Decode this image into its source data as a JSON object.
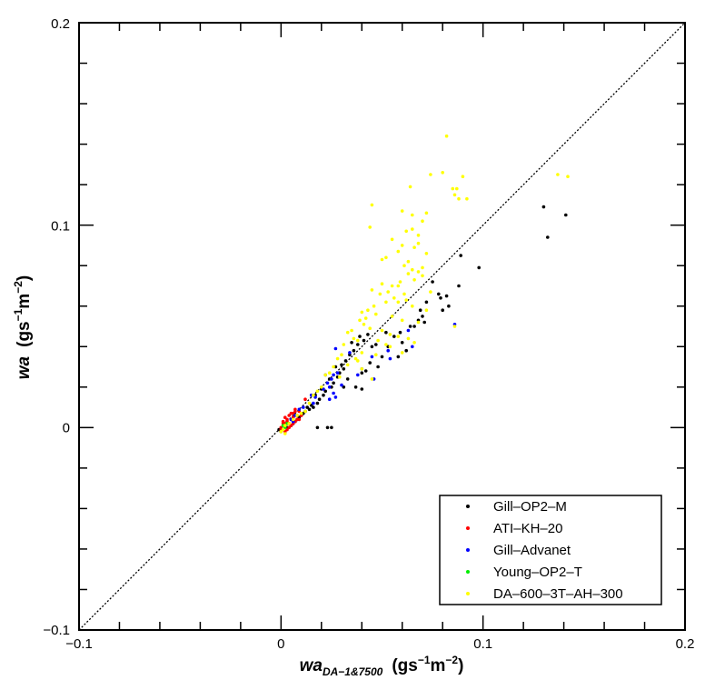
{
  "chart_data": {
    "type": "scatter",
    "xlim": [
      -0.1,
      0.2
    ],
    "ylim": [
      -0.1,
      0.2
    ],
    "x_ticks": [
      "−0.1",
      "0",
      "0.1",
      "0.2"
    ],
    "y_ticks": [
      "−0.1",
      "0",
      "0.1",
      "0.2"
    ],
    "xlabel": {
      "main": "wa",
      "sub": "DA−1&7500",
      "units_prefix": "(gs",
      "units_exp1": "−1",
      "units_mid": "m",
      "units_exp2": "−2",
      "units_suffix": ")"
    },
    "ylabel": {
      "main": "wa",
      "units_prefix": "(gs",
      "units_exp1": "−1",
      "units_mid": "m",
      "units_exp2": "−2",
      "units_suffix": ")"
    },
    "reference_line": "1:1 dotted",
    "legend_position": "bottom-right",
    "grid": false,
    "series": [
      {
        "name": "Gill–OP2–M",
        "color": "#000000",
        "points": [
          [
            0.141,
            0.105
          ],
          [
            0.13,
            0.109
          ],
          [
            0.132,
            0.094
          ],
          [
            0.098,
            0.079
          ],
          [
            0.089,
            0.085
          ],
          [
            0.088,
            0.07
          ],
          [
            0.082,
            0.065
          ],
          [
            0.079,
            0.064
          ],
          [
            0.083,
            0.06
          ],
          [
            0.08,
            0.058
          ],
          [
            0.075,
            0.072
          ],
          [
            0.078,
            0.066
          ],
          [
            0.069,
            0.058
          ],
          [
            0.07,
            0.055
          ],
          [
            0.068,
            0.053
          ],
          [
            0.072,
            0.062
          ],
          [
            0.071,
            0.052
          ],
          [
            0.064,
            0.05
          ],
          [
            0.066,
            0.05
          ],
          [
            0.059,
            0.047
          ],
          [
            0.056,
            0.045
          ],
          [
            0.052,
            0.047
          ],
          [
            0.06,
            0.042
          ],
          [
            0.047,
            0.041
          ],
          [
            0.045,
            0.04
          ],
          [
            0.043,
            0.046
          ],
          [
            0.041,
            0.043
          ],
          [
            0.039,
            0.045
          ],
          [
            0.038,
            0.041
          ],
          [
            0.036,
            0.038
          ],
          [
            0.035,
            0.042
          ],
          [
            0.034,
            0.036
          ],
          [
            0.032,
            0.033
          ],
          [
            0.031,
            0.029
          ],
          [
            0.03,
            0.031
          ],
          [
            0.029,
            0.027
          ],
          [
            0.028,
            0.025
          ],
          [
            0.027,
            0.03
          ],
          [
            0.026,
            0.022
          ],
          [
            0.025,
            0.02
          ],
          [
            0.024,
            0.024
          ],
          [
            0.022,
            0.018
          ],
          [
            0.021,
            0.016
          ],
          [
            0.02,
            0.019
          ],
          [
            0.019,
            0.014
          ],
          [
            0.018,
            0.012
          ],
          [
            0.017,
            0.016
          ],
          [
            0.016,
            0.01
          ],
          [
            0.015,
            0.011
          ],
          [
            0.014,
            0.009
          ],
          [
            0.013,
            0.01
          ],
          [
            0.012,
            0.008
          ],
          [
            0.011,
            0.007
          ],
          [
            0.01,
            0.006
          ],
          [
            0.009,
            0.005
          ],
          [
            0.008,
            0.004
          ],
          [
            0.007,
            0.003
          ],
          [
            0.006,
            0.002
          ],
          [
            0.005,
            0.001
          ],
          [
            0.004,
            0.002
          ],
          [
            0.003,
            0.0
          ],
          [
            0.002,
            0.001
          ],
          [
            0.001,
            -0.001
          ],
          [
            0.0,
            -0.002
          ],
          [
            -0.001,
            -0.001
          ],
          [
            0.018,
            0.0
          ],
          [
            0.023,
            0.0
          ],
          [
            0.025,
            0.0
          ],
          [
            0.04,
            0.027
          ],
          [
            0.042,
            0.028
          ],
          [
            0.037,
            0.02
          ],
          [
            0.04,
            0.019
          ],
          [
            0.05,
            0.035
          ],
          [
            0.053,
            0.04
          ],
          [
            0.058,
            0.035
          ],
          [
            0.062,
            0.038
          ],
          [
            0.048,
            0.03
          ],
          [
            0.044,
            0.032
          ],
          [
            0.033,
            0.024
          ],
          [
            0.031,
            0.02
          ]
        ]
      },
      {
        "name": "ATI–KH–20",
        "color": "#ff0000",
        "points": [
          [
            0.0,
            0.0
          ],
          [
            0.001,
            0.002
          ],
          [
            0.002,
            0.001
          ],
          [
            0.003,
            0.003
          ],
          [
            0.004,
            0.002
          ],
          [
            0.005,
            0.004
          ],
          [
            0.006,
            0.005
          ],
          [
            0.007,
            0.003
          ],
          [
            0.005,
            0.001
          ],
          [
            0.003,
            -0.001
          ],
          [
            0.002,
            -0.002
          ],
          [
            0.001,
            -0.001
          ],
          [
            0.004,
            0.006
          ],
          [
            0.006,
            0.007
          ],
          [
            0.008,
            0.006
          ],
          [
            0.009,
            0.008
          ],
          [
            0.007,
            0.008
          ],
          [
            0.003,
            0.004
          ],
          [
            0.002,
            0.005
          ],
          [
            0.001,
            0.003
          ],
          [
            0.0,
            -0.001
          ],
          [
            0.004,
            0.0
          ],
          [
            0.006,
            0.002
          ],
          [
            0.008,
            0.004
          ],
          [
            0.01,
            0.006
          ],
          [
            0.009,
            0.004
          ],
          [
            0.012,
            0.014
          ],
          [
            0.005,
            0.007
          ],
          [
            0.007,
            0.009
          ],
          [
            0.002,
            0.002
          ]
        ]
      },
      {
        "name": "Gill–Advanet",
        "color": "#0000ff",
        "points": [
          [
            0.086,
            0.051
          ],
          [
            0.065,
            0.04
          ],
          [
            0.063,
            0.048
          ],
          [
            0.054,
            0.034
          ],
          [
            0.053,
            0.038
          ],
          [
            0.045,
            0.035
          ],
          [
            0.046,
            0.024
          ],
          [
            0.04,
            0.029
          ],
          [
            0.038,
            0.026
          ],
          [
            0.034,
            0.037
          ],
          [
            0.027,
            0.039
          ],
          [
            0.026,
            0.026
          ],
          [
            0.025,
            0.024
          ],
          [
            0.024,
            0.02
          ],
          [
            0.023,
            0.022
          ],
          [
            0.022,
            0.026
          ],
          [
            0.021,
            0.019
          ],
          [
            0.027,
            0.015
          ],
          [
            0.026,
            0.017
          ],
          [
            0.017,
            0.015
          ],
          [
            0.016,
            0.012
          ],
          [
            0.015,
            0.016
          ],
          [
            0.03,
            0.021
          ],
          [
            0.028,
            0.027
          ],
          [
            0.011,
            0.01
          ],
          [
            0.009,
            0.009
          ],
          [
            0.007,
            0.006
          ],
          [
            0.005,
            0.004
          ],
          [
            0.006,
            0.003
          ],
          [
            0.024,
            0.014
          ]
        ]
      },
      {
        "name": "Young–OP2–T",
        "color": "#00ee00",
        "points": [
          [
            0.001,
            0.001
          ],
          [
            0.002,
            0.0
          ],
          [
            0.003,
            0.002
          ]
        ]
      },
      {
        "name": "DA–600–3T–AH–300",
        "color": "#ffff00",
        "points": [
          [
            0.082,
            0.144
          ],
          [
            0.08,
            0.126
          ],
          [
            0.074,
            0.125
          ],
          [
            0.09,
            0.124
          ],
          [
            0.142,
            0.124
          ],
          [
            0.137,
            0.125
          ],
          [
            0.064,
            0.119
          ],
          [
            0.085,
            0.118
          ],
          [
            0.088,
            0.113
          ],
          [
            0.086,
            0.115
          ],
          [
            0.092,
            0.113
          ],
          [
            0.087,
            0.118
          ],
          [
            0.045,
            0.11
          ],
          [
            0.06,
            0.107
          ],
          [
            0.065,
            0.105
          ],
          [
            0.072,
            0.106
          ],
          [
            0.07,
            0.102
          ],
          [
            0.044,
            0.099
          ],
          [
            0.065,
            0.098
          ],
          [
            0.062,
            0.097
          ],
          [
            0.068,
            0.095
          ],
          [
            0.06,
            0.09
          ],
          [
            0.055,
            0.093
          ],
          [
            0.066,
            0.089
          ],
          [
            0.072,
            0.086
          ],
          [
            0.058,
            0.087
          ],
          [
            0.063,
            0.082
          ],
          [
            0.052,
            0.084
          ],
          [
            0.05,
            0.083
          ],
          [
            0.061,
            0.08
          ],
          [
            0.065,
            0.078
          ],
          [
            0.068,
            0.077
          ],
          [
            0.07,
            0.075
          ],
          [
            0.07,
            0.079
          ],
          [
            0.063,
            0.076
          ],
          [
            0.066,
            0.073
          ],
          [
            0.059,
            0.072
          ],
          [
            0.055,
            0.07
          ],
          [
            0.05,
            0.071
          ],
          [
            0.045,
            0.068
          ],
          [
            0.049,
            0.066
          ],
          [
            0.053,
            0.067
          ],
          [
            0.056,
            0.064
          ],
          [
            0.052,
            0.062
          ],
          [
            0.058,
            0.062
          ],
          [
            0.062,
            0.063
          ],
          [
            0.046,
            0.06
          ],
          [
            0.043,
            0.058
          ],
          [
            0.04,
            0.057
          ],
          [
            0.047,
            0.056
          ],
          [
            0.042,
            0.054
          ],
          [
            0.055,
            0.055
          ],
          [
            0.06,
            0.053
          ],
          [
            0.065,
            0.06
          ],
          [
            0.072,
            0.058
          ],
          [
            0.068,
            0.052
          ],
          [
            0.039,
            0.053
          ],
          [
            0.041,
            0.051
          ],
          [
            0.044,
            0.049
          ],
          [
            0.05,
            0.048
          ],
          [
            0.054,
            0.046
          ],
          [
            0.058,
            0.045
          ],
          [
            0.063,
            0.044
          ],
          [
            0.066,
            0.042
          ],
          [
            0.035,
            0.048
          ],
          [
            0.033,
            0.047
          ],
          [
            0.036,
            0.044
          ],
          [
            0.038,
            0.043
          ],
          [
            0.048,
            0.043
          ],
          [
            0.052,
            0.041
          ],
          [
            0.054,
            0.04
          ],
          [
            0.031,
            0.041
          ],
          [
            0.04,
            0.037
          ],
          [
            0.037,
            0.034
          ],
          [
            0.033,
            0.031
          ],
          [
            0.03,
            0.036
          ],
          [
            0.028,
            0.034
          ],
          [
            0.026,
            0.03
          ],
          [
            0.024,
            0.027
          ],
          [
            0.029,
            0.025
          ],
          [
            0.038,
            0.033
          ],
          [
            0.06,
            0.037
          ],
          [
            0.047,
            0.036
          ],
          [
            0.022,
            0.026
          ],
          [
            0.045,
            0.024
          ],
          [
            0.04,
            0.029
          ],
          [
            0.02,
            0.02
          ],
          [
            0.018,
            0.018
          ],
          [
            0.016,
            0.016
          ],
          [
            0.014,
            0.012
          ],
          [
            0.012,
            0.008
          ],
          [
            0.01,
            0.007
          ],
          [
            0.008,
            0.006
          ],
          [
            0.006,
            0.004
          ],
          [
            0.004,
            0.002
          ],
          [
            0.002,
            0.001
          ],
          [
            0.001,
            -0.001
          ],
          [
            0.002,
            -0.003
          ],
          [
            0.0,
            -0.002
          ],
          [
            0.068,
            0.091
          ],
          [
            0.058,
            0.07
          ],
          [
            0.061,
            0.066
          ],
          [
            0.074,
            0.067
          ],
          [
            0.086,
            0.05
          ]
        ]
      }
    ]
  }
}
